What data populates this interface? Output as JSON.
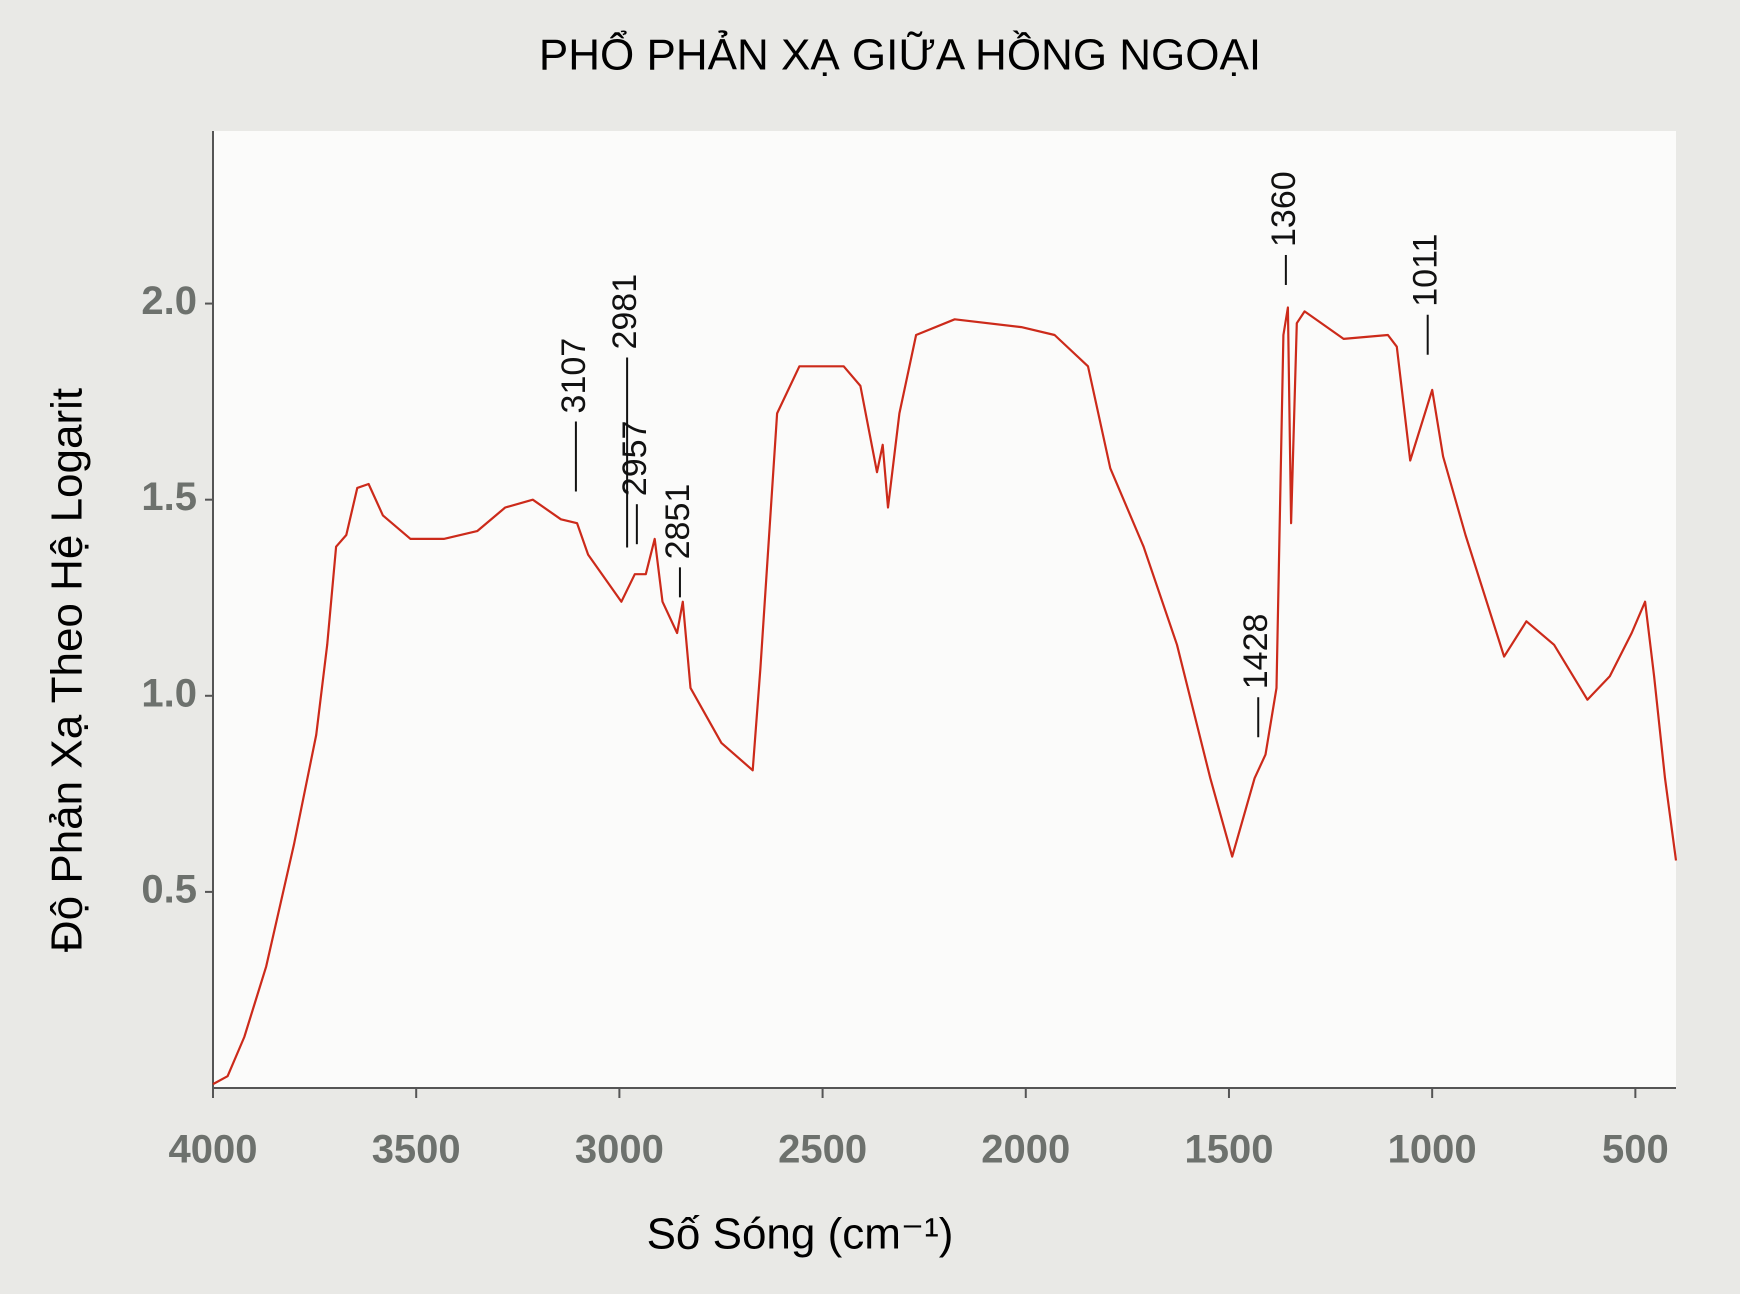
{
  "chart_data": {
    "type": "line",
    "title": "PHỔ PHẢN XẠ GIỮA HỒNG NGOẠI",
    "x_label": "Số Sóng (cm⁻¹)",
    "y_label": "Độ Phản Xạ Theo Hệ Logarit",
    "color": "#cc2a1a",
    "x": [
      4000,
      3964,
      3923,
      3869,
      3801,
      3746,
      3719,
      3697,
      3672,
      3645,
      3617,
      3582,
      3514,
      3432,
      3350,
      3281,
      3213,
      3144,
      3104,
      3077,
      2995,
      2962,
      2935,
      2913,
      2894,
      2858,
      2844,
      2825,
      2749,
      2672,
      2653,
      2612,
      2557,
      2448,
      2407,
      2366,
      2352,
      2339,
      2311,
      2270,
      2175,
      2011,
      1929,
      1847,
      1792,
      1710,
      1628,
      1546,
      1492,
      1437,
      1410,
      1383,
      1366,
      1355,
      1347,
      1333,
      1314,
      1218,
      1109,
      1087,
      1054,
      1000,
      973,
      918,
      823,
      768,
      700,
      618,
      563,
      509,
      476,
      454,
      427,
      400
    ],
    "values": [
      0.01,
      0.03,
      0.13,
      0.31,
      0.62,
      0.9,
      1.13,
      1.38,
      1.41,
      1.53,
      1.54,
      1.46,
      1.4,
      1.4,
      1.42,
      1.48,
      1.5,
      1.45,
      1.44,
      1.36,
      1.24,
      1.31,
      1.31,
      1.4,
      1.24,
      1.16,
      1.24,
      1.02,
      0.88,
      0.81,
      1.07,
      1.72,
      1.84,
      1.84,
      1.79,
      1.57,
      1.64,
      1.48,
      1.72,
      1.92,
      1.96,
      1.94,
      1.92,
      1.84,
      1.58,
      1.38,
      1.13,
      0.79,
      0.59,
      0.79,
      0.85,
      1.02,
      1.92,
      1.99,
      1.44,
      1.95,
      1.98,
      1.91,
      1.92,
      1.89,
      1.6,
      1.78,
      1.61,
      1.41,
      1.1,
      1.19,
      1.13,
      0.99,
      1.05,
      1.16,
      1.24,
      1.05,
      0.79,
      0.58
    ],
    "peaks": [
      3107,
      2981,
      2957,
      2851,
      1428,
      1360,
      1011
    ],
    "xlim": [
      4000,
      400
    ],
    "xticks": [
      4000,
      3500,
      3000,
      2500,
      2000,
      1500,
      1000,
      500
    ],
    "ylim": [
      0,
      2.44
    ],
    "yticks": [
      0.5,
      {
        "value": 1,
        "label": "1.0"
      },
      1.5,
      {
        "value": 2,
        "label": "2.0"
      }
    ]
  }
}
